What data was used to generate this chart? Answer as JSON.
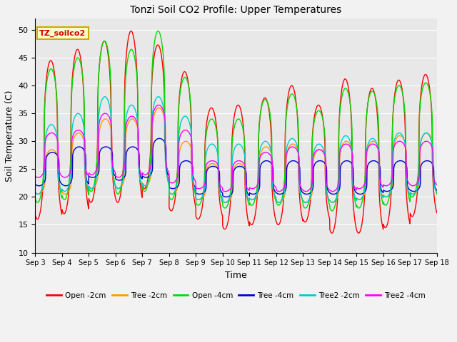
{
  "title": "Tonzi Soil CO2 Profile: Upper Temperatures",
  "xlabel": "Time",
  "ylabel": "Soil Temperature (C)",
  "ylim": [
    10,
    52
  ],
  "xlim": [
    0,
    15
  ],
  "background_color": "#e8e8e8",
  "grid_color": "#ffffff",
  "annotation_text": "TZ_soilco2",
  "annotation_bg": "#ffffcc",
  "annotation_border": "#ccaa00",
  "fig_bg": "#f2f2f2",
  "series": {
    "Open -2cm": {
      "color": "#ff0000"
    },
    "Tree -2cm": {
      "color": "#ff9900"
    },
    "Open -4cm": {
      "color": "#00dd00"
    },
    "Tree -4cm": {
      "color": "#0000cc"
    },
    "Tree2 -2cm": {
      "color": "#00cccc"
    },
    "Tree2 -4cm": {
      "color": "#ff00ff"
    }
  },
  "xtick_labels": [
    "Sep 3",
    "Sep 4",
    "Sep 5",
    "Sep 6",
    "Sep 7",
    "Sep 8",
    "Sep 9",
    "Sep 10",
    "Sep 11",
    "Sep 12",
    "Sep 13",
    "Sep 14",
    "Sep 15",
    "Sep 16",
    "Sep 17",
    "Sep 18"
  ],
  "ytick_values": [
    10,
    15,
    20,
    25,
    30,
    35,
    40,
    45,
    50
  ],
  "open2_peaks": [
    44.5,
    46.5,
    48.0,
    49.8,
    47.3,
    42.5,
    36.0,
    36.5,
    37.8,
    40.0,
    36.5,
    41.2,
    39.5,
    41.0,
    42.0
  ],
  "open2_mins": [
    16.0,
    17.0,
    19.0,
    19.0,
    21.5,
    17.5,
    16.0,
    14.2,
    15.0,
    15.0,
    15.5,
    13.5,
    13.5,
    14.5,
    16.5
  ],
  "open4_peaks": [
    43.0,
    45.0,
    48.0,
    46.5,
    49.8,
    41.5,
    34.0,
    34.0,
    37.5,
    38.5,
    35.5,
    39.5,
    39.0,
    40.0,
    40.5
  ],
  "open4_mins": [
    19.0,
    19.5,
    21.0,
    20.5,
    21.0,
    19.5,
    18.5,
    18.0,
    18.5,
    18.5,
    18.0,
    17.5,
    18.0,
    18.5,
    20.0
  ],
  "tree2_peaks": [
    28.5,
    31.5,
    34.0,
    34.0,
    36.0,
    30.0,
    26.0,
    26.0,
    29.0,
    29.5,
    28.5,
    30.0,
    30.0,
    31.0,
    31.5
  ],
  "tree2_mins": [
    20.5,
    20.5,
    21.5,
    21.5,
    22.0,
    20.5,
    19.5,
    19.0,
    19.5,
    19.0,
    19.0,
    19.0,
    19.5,
    20.0,
    20.5
  ],
  "tree4_peaks": [
    28.0,
    29.0,
    29.0,
    29.0,
    30.5,
    26.5,
    25.5,
    25.5,
    26.5,
    26.5,
    26.5,
    26.5,
    26.5,
    26.5,
    26.5
  ],
  "tree4_mins": [
    22.0,
    22.0,
    23.5,
    23.0,
    23.5,
    21.5,
    20.5,
    20.0,
    20.5,
    20.5,
    20.5,
    20.5,
    20.5,
    21.0,
    21.0
  ],
  "tree22_peaks": [
    33.0,
    35.0,
    38.0,
    36.5,
    38.0,
    34.5,
    29.5,
    29.5,
    30.0,
    30.5,
    29.5,
    31.0,
    30.5,
    31.5,
    31.5
  ],
  "tree22_mins": [
    20.5,
    21.0,
    21.5,
    21.5,
    22.0,
    20.5,
    19.5,
    19.0,
    19.5,
    19.0,
    19.0,
    19.0,
    19.5,
    20.0,
    20.5
  ],
  "tree24_peaks": [
    31.5,
    32.0,
    35.0,
    34.5,
    36.5,
    32.0,
    26.5,
    26.5,
    28.0,
    29.0,
    28.5,
    29.5,
    29.5,
    30.0,
    30.0
  ],
  "tree24_mins": [
    23.5,
    23.5,
    24.0,
    23.5,
    24.0,
    22.5,
    21.5,
    21.0,
    21.5,
    21.0,
    21.0,
    21.0,
    21.5,
    22.0,
    22.0
  ]
}
